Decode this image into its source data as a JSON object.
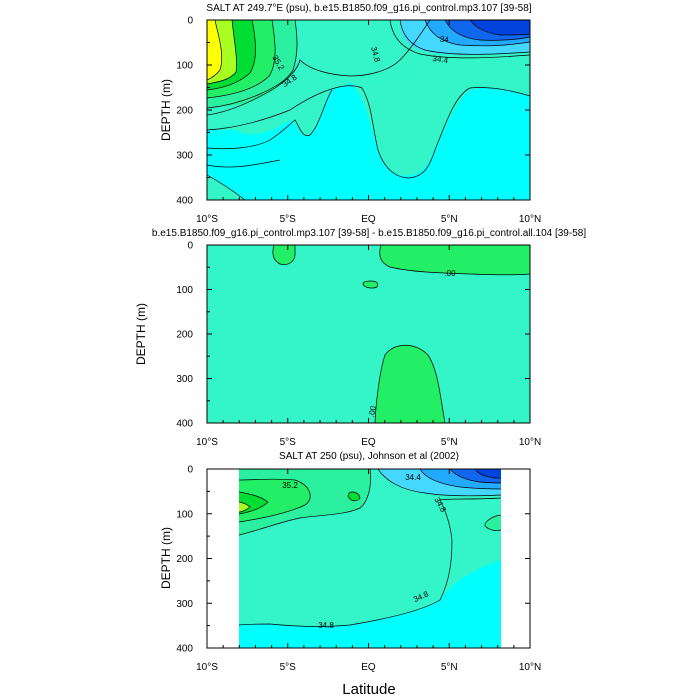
{
  "colors": {
    "background_cyan": "#00ffff",
    "teal": "#33f5c8",
    "light_teal": "#2af0a0",
    "green1": "#22ee66",
    "green2": "#00dd33",
    "lime": "#aaff22",
    "yellow": "#ffff00",
    "blue_light": "#44d8ff",
    "blue_mid": "#22aaff",
    "blue_dark": "#1166ee",
    "blue_deep": "#0044dd"
  },
  "x_axis": {
    "label": "Latitude",
    "ticks": [
      "10°S",
      "5°S",
      "EQ",
      "5°N",
      "10°N"
    ],
    "tick_values": [
      -10,
      -5,
      0,
      5,
      10
    ]
  },
  "chart_data": [
    {
      "type": "contour",
      "title": "SALT AT 249.7°E (psu), b.e15.B1850.f09_g16.pi_control.mp3.107 [39-58]",
      "xlabel": "",
      "ylabel": "DEPTH (m)",
      "xlim": [
        -10,
        10
      ],
      "ylim": [
        400,
        0
      ],
      "yticks": [
        0,
        100,
        200,
        300,
        400
      ],
      "contour_labels": [
        "35.2",
        "34.8",
        "34.8",
        "34.4",
        "34"
      ]
    },
    {
      "type": "contour",
      "title": "b.e15.B1850.f09_g16.pi_control.mp3.107 [39-58] - b.e15.B1850.f09_g16.pi_control.all.104 [39-58]",
      "xlabel": "",
      "ylabel": "DEPTH (m)",
      "xlim": [
        -10,
        10
      ],
      "ylim": [
        400,
        0
      ],
      "yticks": [
        0,
        100,
        200,
        300,
        400
      ],
      "contour_labels": [
        ".00",
        ".00"
      ]
    },
    {
      "type": "contour",
      "title": "SALT AT 250 (psu), Johnson et al (2002)",
      "xlabel": "Latitude",
      "ylabel": "DEPTH (m)",
      "xlim": [
        -10,
        10
      ],
      "ylim": [
        400,
        0
      ],
      "yticks": [
        0,
        100,
        200,
        300,
        400
      ],
      "data_xlim": [
        -8.1,
        8.1
      ],
      "contour_labels": [
        "35.2",
        "34.4",
        "34.8",
        "34.8",
        "34.8"
      ]
    }
  ]
}
